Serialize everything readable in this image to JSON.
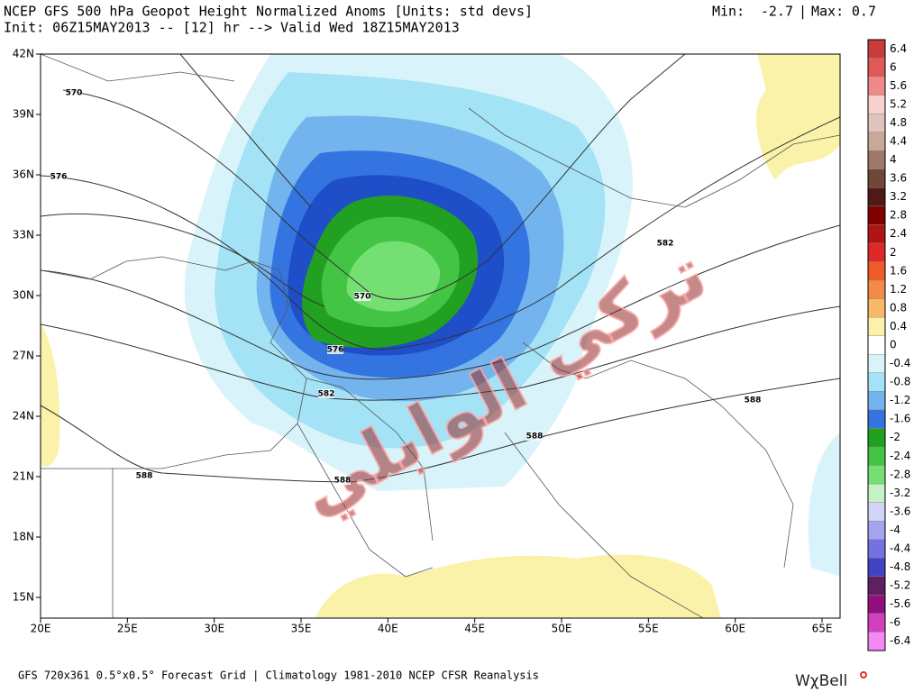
{
  "header": {
    "title": "NCEP GFS 500 hPa Geopot Height Normalized Anoms [Units: std devs]",
    "subtitle": "Init: 06Z15MAY2013 -- [12] hr --> Valid Wed 18Z15MAY2013",
    "min_label": "Min:",
    "min_value": "-2.7",
    "separator": "|",
    "max_label": "Max:",
    "max_value": "0.7"
  },
  "map": {
    "lat_labels": [
      "42N",
      "39N",
      "36N",
      "33N",
      "30N",
      "27N",
      "24N",
      "21N",
      "18N",
      "15N"
    ],
    "lon_labels": [
      "20E",
      "25E",
      "30E",
      "35E",
      "40E",
      "45E",
      "50E",
      "55E",
      "60E",
      "65E"
    ],
    "contour_labels": [
      "570",
      "576",
      "570",
      "576",
      "582",
      "582",
      "588",
      "588",
      "588",
      "588"
    ]
  },
  "colorbar": {
    "labels": [
      "6.4",
      "6",
      "5.6",
      "5.2",
      "4.8",
      "4.4",
      "4",
      "3.6",
      "3.2",
      "2.8",
      "2.4",
      "2",
      "1.6",
      "1.2",
      "0.8",
      "0.4",
      "0",
      "-0.4",
      "-0.8",
      "-1.2",
      "-1.6",
      "-2",
      "-2.4",
      "-2.8",
      "-3.2",
      "-3.6",
      "-4",
      "-4.4",
      "-4.8",
      "-5.2",
      "-5.6",
      "-6",
      "-6.4"
    ],
    "colors": [
      "#c83c3c",
      "#e05858",
      "#f08a8a",
      "#f8d0d0",
      "#e0c4bc",
      "#c8a898",
      "#a07868",
      "#704838",
      "#501818",
      "#800000",
      "#b01414",
      "#e02828",
      "#f05a28",
      "#f58a48",
      "#f8b868",
      "#faf2a8",
      "#ffffff",
      "#d8f4fa",
      "#a4e2f6",
      "#74b4ee",
      "#3474e0",
      "#22a022",
      "#44c444",
      "#74e074",
      "#c4f2c4",
      "#d4d4f8",
      "#a4a4f2",
      "#7272e2",
      "#4242c2",
      "#602060",
      "#901080",
      "#d040c0",
      "#f488f4"
    ]
  },
  "watermark": {
    "line1": "تركي",
    "line2": "الوابلي"
  },
  "footer": {
    "text": "GFS 720x361 0.5°x0.5° Forecast Grid | Climatology 1981-2010 NCEP CFSR Reanalysis",
    "logo": "WχBell"
  }
}
